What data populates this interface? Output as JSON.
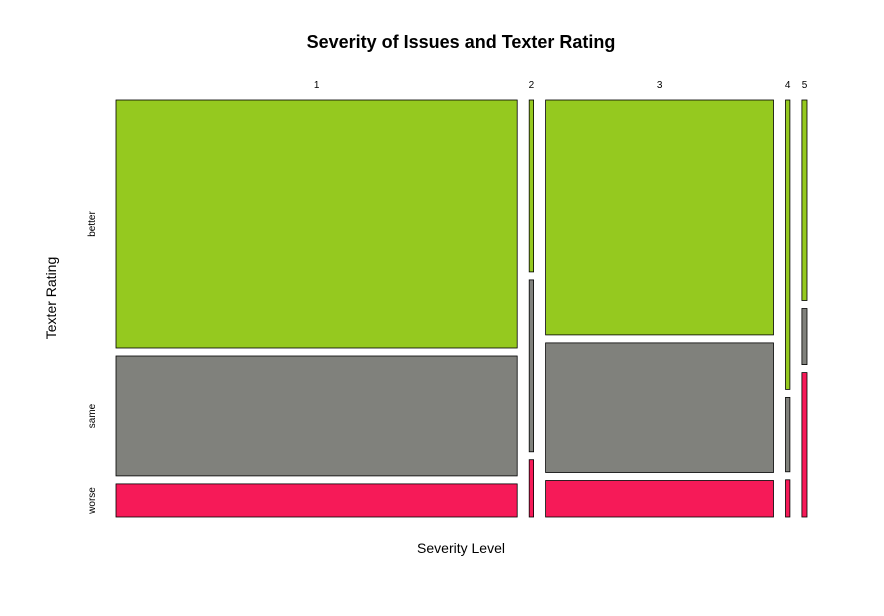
{
  "chart_data": {
    "type": "mosaic",
    "title": "Severity of Issues and Texter Rating",
    "xlabel": "Severity Level",
    "ylabel": "Texter Rating",
    "categories": [
      "1",
      "2",
      "3",
      "4",
      "5"
    ],
    "ratings": [
      "better",
      "same",
      "worse"
    ],
    "column_shares": [
      0.551,
      0.006,
      0.313,
      0.006,
      0.007
    ],
    "series": [
      {
        "name": "better",
        "color": "#95c91f",
        "values": [
          0.6,
          0.42,
          0.58,
          0.7,
          0.5
        ]
      },
      {
        "name": "same",
        "color": "#80817c",
        "values": [
          0.29,
          0.42,
          0.32,
          0.18,
          0.14
        ]
      },
      {
        "name": "worse",
        "color": "#f61a58",
        "values": [
          0.08,
          0.14,
          0.09,
          0.09,
          0.36
        ]
      }
    ]
  }
}
